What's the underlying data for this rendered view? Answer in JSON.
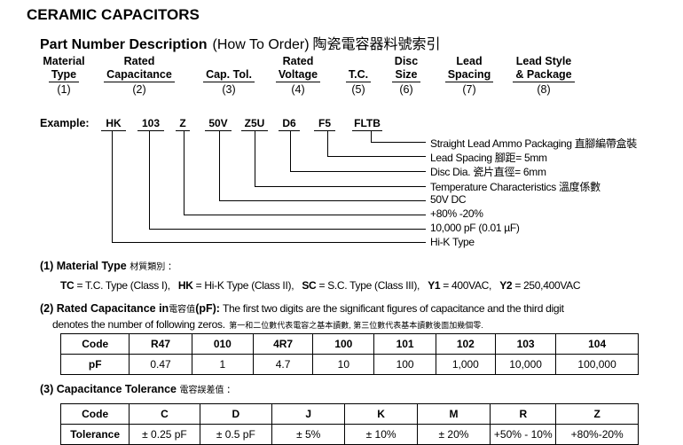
{
  "title": "CERAMIC CAPACITORS",
  "subtitle": {
    "main": "Part Number Description",
    "paren": "(How To Order)",
    "chinese": "陶瓷電容器料號索引"
  },
  "columns": [
    {
      "l1": "Material",
      "l2": "Type",
      "num": "(1)"
    },
    {
      "l1": "Rated",
      "l2": "Capacitance",
      "num": "(2)"
    },
    {
      "l1": "",
      "l2": "Cap. Tol.",
      "num": "(3)"
    },
    {
      "l1": "Rated",
      "l2": "Voltage",
      "num": "(4)"
    },
    {
      "l1": "",
      "l2": "T.C.",
      "num": "(5)"
    },
    {
      "l1": "Disc",
      "l2": "Size",
      "num": "(6)"
    },
    {
      "l1": "Lead",
      "l2": "Spacing",
      "num": "(7)"
    },
    {
      "l1": "Lead Style",
      "l2": "& Package",
      "num": "(8)"
    }
  ],
  "example": {
    "label": "Example:",
    "codes": [
      "HK",
      "103",
      "Z",
      "50V",
      "Z5U",
      "D6",
      "F5",
      "FLTB"
    ],
    "descriptions": [
      "Straight Lead Ammo Packaging 直腳編帶盒裝",
      "Lead Spacing 腳距= 5mm",
      "Disc Dia. 瓷片直徑= 6mm",
      "Temperature Characteristics 溫度係數",
      "50V DC",
      "+80% -20%",
      "10,000 pF (0.01 µF)",
      "Hi-K Type"
    ]
  },
  "section1": {
    "title": "(1) Material Type",
    "chinese": "材質類別 ：",
    "items": [
      {
        "k": "TC",
        "v": " = T.C. Type (Class I),"
      },
      {
        "k": "HK",
        "v": " = Hi-K Type (Class II),"
      },
      {
        "k": "SC",
        "v": " = S.C. Type (Class III),"
      },
      {
        "k": "Y1",
        "v": " = 400VAC,"
      },
      {
        "k": "Y2",
        "v": " = 250,400VAC"
      }
    ]
  },
  "section2": {
    "title": "(2) Rated Capacitance in",
    "chinese": "電容值",
    "unit": "(pF):",
    "text1": " The first two digits are the significant figures of capacitance and the third digit",
    "text2": "denotes the number of following zeros.",
    "chinese2": "第一和二位數代表電容之基本讀數, 第三位數代表基本讀數後面加幾個零."
  },
  "table1": {
    "header": [
      "Code",
      "R47",
      "010",
      "4R7",
      "100",
      "101",
      "102",
      "103",
      "104"
    ],
    "row": [
      "pF",
      "0.47",
      "1",
      "4.7",
      "10",
      "100",
      "1,000",
      "10,000",
      "100,000"
    ]
  },
  "section3": {
    "title": "(3) Capacitance Tolerance",
    "chinese": "電容誤差值 ："
  },
  "table2": {
    "header": [
      "Code",
      "C",
      "D",
      "J",
      "K",
      "M",
      "R",
      "Z"
    ],
    "row": [
      "Tolerance",
      "± 0.25 pF",
      "± 0.5 pF",
      "± 5%",
      "± 10%",
      "± 20%",
      "+50% - 10%",
      "+80%-20%"
    ]
  }
}
